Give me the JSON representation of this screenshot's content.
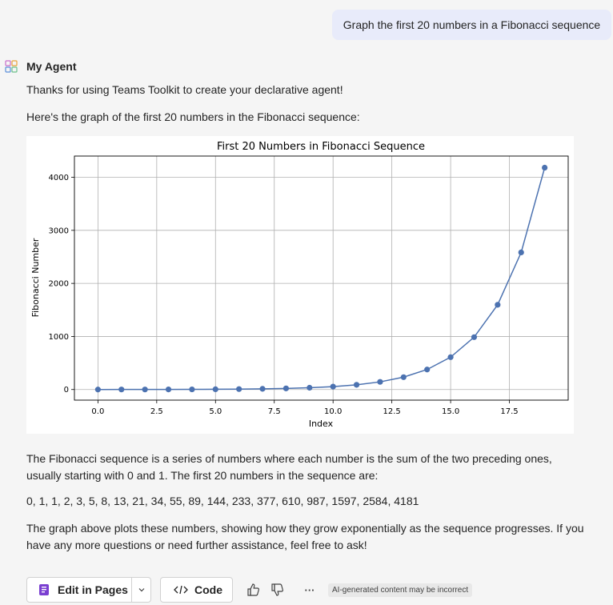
{
  "user_message": "Graph the first 20 numbers in a Fibonacci sequence",
  "agent": {
    "name": "My Agent",
    "intro": "Thanks for using Teams Toolkit to create your declarative agent!",
    "lead": "Here's the graph of the first 20 numbers in the Fibonacci sequence:",
    "para1": "The Fibonacci sequence is a series of numbers where each number is the sum of the two preceding ones, usually starting with 0 and 1. The first 20 numbers in the sequence are:",
    "sequence": "0, 1, 1, 2, 3, 5, 8, 13, 21, 34, 55, 89, 144, 233, 377, 610, 987, 1597, 2584, 4181",
    "para2": "The graph above plots these numbers, showing how they grow exponentially as the sequence progresses. If you have any more questions or need further assistance, feel free to ask!"
  },
  "actions": {
    "edit_label": "Edit in Pages",
    "code_label": "Code",
    "ai_note": "AI-generated content may be incorrect",
    "more_label": "···"
  },
  "chart_data": {
    "type": "line",
    "title": "First 20 Numbers in Fibonacci Sequence",
    "xlabel": "Index",
    "ylabel": "Fibonacci Number",
    "x": [
      0,
      1,
      2,
      3,
      4,
      5,
      6,
      7,
      8,
      9,
      10,
      11,
      12,
      13,
      14,
      15,
      16,
      17,
      18,
      19
    ],
    "y": [
      0,
      1,
      1,
      2,
      3,
      5,
      8,
      13,
      21,
      34,
      55,
      89,
      144,
      233,
      377,
      610,
      987,
      1597,
      2584,
      4181
    ],
    "xlim": [
      -1,
      20
    ],
    "ylim": [
      -200,
      4400
    ],
    "xticks": [
      0.0,
      2.5,
      5.0,
      7.5,
      10.0,
      12.5,
      15.0,
      17.5
    ],
    "xtick_labels": [
      "0.0",
      "2.5",
      "5.0",
      "7.5",
      "10.0",
      "12.5",
      "15.0",
      "17.5"
    ],
    "yticks": [
      0,
      1000,
      2000,
      3000,
      4000
    ],
    "ytick_labels": [
      "0",
      "1000",
      "2000",
      "3000",
      "4000"
    ],
    "grid": true,
    "color": "#4c72b0"
  }
}
